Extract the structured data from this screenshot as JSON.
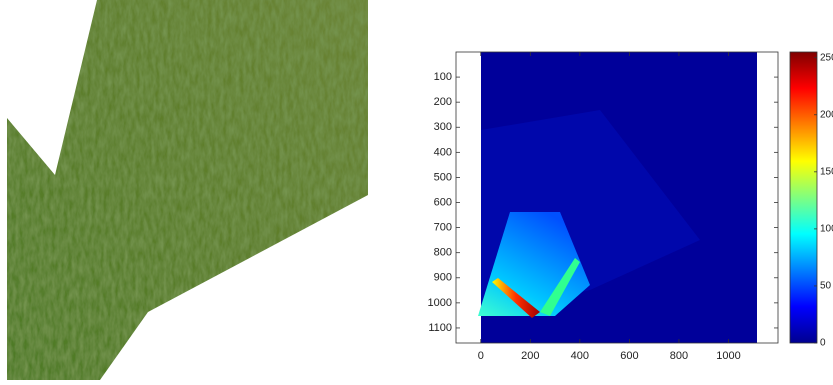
{
  "chart_data": {
    "type": "heatmap",
    "colormap": "jet",
    "xlim": [
      -100,
      1200
    ],
    "xticks": [
      0,
      200,
      400,
      600,
      800,
      1000
    ],
    "ylim": [
      1160,
      0
    ],
    "yticks": [
      100,
      200,
      300,
      400,
      500,
      600,
      700,
      800,
      900,
      1000,
      1100
    ],
    "clim": [
      0,
      255
    ],
    "cticks": [
      0,
      50,
      100,
      150,
      200,
      250
    ]
  }
}
